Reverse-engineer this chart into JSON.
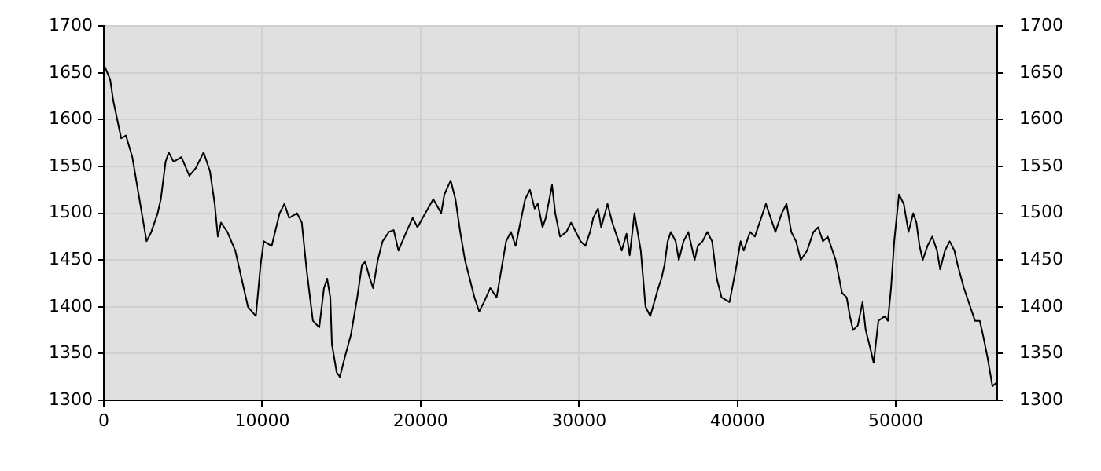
{
  "chart_data": {
    "type": "line",
    "xlim": [
      0,
      56400
    ],
    "xticks": [
      0,
      10000,
      20000,
      30000,
      40000,
      50000
    ],
    "ylim": [
      1300,
      1700
    ],
    "yticks": [
      1300,
      1350,
      1400,
      1450,
      1500,
      1550,
      1600,
      1650,
      1700
    ],
    "y2lim": [
      1300,
      1700
    ],
    "y2ticks": [
      1300,
      1350,
      1400,
      1450,
      1500,
      1550,
      1600,
      1650,
      1700
    ],
    "grid": true,
    "legend": false,
    "marker": "none",
    "line_style": "solid",
    "x": [
      0,
      400,
      600,
      1100,
      1400,
      1800,
      2100,
      2400,
      2700,
      3000,
      3400,
      3600,
      3900,
      4100,
      4400,
      4900,
      5400,
      5800,
      6300,
      6700,
      7000,
      7200,
      7400,
      7800,
      8300,
      8700,
      9100,
      9600,
      9900,
      10100,
      10600,
      11100,
      11400,
      11700,
      12200,
      12500,
      12800,
      13200,
      13600,
      13900,
      14100,
      14300,
      14400,
      14700,
      14900,
      15200,
      15600,
      16000,
      16300,
      16500,
      16800,
      17000,
      17300,
      17600,
      18000,
      18300,
      18600,
      19100,
      19500,
      19800,
      20300,
      20800,
      21300,
      21500,
      21900,
      22200,
      22500,
      22800,
      23100,
      23400,
      23700,
      24000,
      24400,
      24800,
      25100,
      25400,
      25700,
      26000,
      26300,
      26600,
      26900,
      27200,
      27400,
      27700,
      27900,
      28300,
      28500,
      28800,
      29200,
      29500,
      29800,
      30100,
      30400,
      30700,
      30900,
      31200,
      31400,
      31800,
      32100,
      32400,
      32700,
      33000,
      33200,
      33500,
      33900,
      34200,
      34500,
      35000,
      35200,
      35400,
      35600,
      35800,
      36100,
      36300,
      36600,
      36900,
      37300,
      37500,
      37800,
      38100,
      38400,
      38700,
      39000,
      39500,
      39900,
      40200,
      40400,
      40800,
      41100,
      41500,
      41800,
      42100,
      42400,
      42800,
      43100,
      43400,
      43700,
      44000,
      44400,
      44800,
      45100,
      45400,
      45700,
      46000,
      46200,
      46600,
      46900,
      47100,
      47300,
      47600,
      47900,
      48100,
      48400,
      48600,
      48900,
      49300,
      49500,
      49700,
      49900,
      50200,
      50500,
      50800,
      51100,
      51300,
      51500,
      51700,
      52000,
      52300,
      52600,
      52800,
      53100,
      53400,
      53700,
      53900,
      54300,
      54700,
      55000,
      55300,
      55500,
      55800,
      56100,
      56300,
      56400
    ],
    "series": [
      {
        "color": "#000000",
        "values": [
          1659,
          1643,
          1620,
          1580,
          1583,
          1560,
          1530,
          1500,
          1470,
          1480,
          1500,
          1515,
          1555,
          1565,
          1555,
          1560,
          1540,
          1548,
          1565,
          1545,
          1510,
          1475,
          1490,
          1480,
          1460,
          1430,
          1400,
          1390,
          1445,
          1470,
          1465,
          1500,
          1510,
          1495,
          1500,
          1490,
          1440,
          1385,
          1378,
          1420,
          1430,
          1410,
          1360,
          1330,
          1325,
          1345,
          1370,
          1410,
          1445,
          1448,
          1430,
          1420,
          1450,
          1470,
          1480,
          1482,
          1460,
          1480,
          1495,
          1485,
          1500,
          1515,
          1500,
          1520,
          1535,
          1515,
          1480,
          1450,
          1430,
          1410,
          1395,
          1405,
          1420,
          1410,
          1440,
          1470,
          1480,
          1465,
          1490,
          1515,
          1525,
          1505,
          1510,
          1485,
          1495,
          1530,
          1500,
          1475,
          1480,
          1490,
          1480,
          1470,
          1465,
          1480,
          1495,
          1505,
          1485,
          1510,
          1490,
          1475,
          1460,
          1478,
          1455,
          1500,
          1460,
          1400,
          1390,
          1420,
          1430,
          1445,
          1470,
          1480,
          1470,
          1450,
          1470,
          1480,
          1450,
          1465,
          1470,
          1480,
          1470,
          1430,
          1410,
          1405,
          1440,
          1470,
          1460,
          1480,
          1475,
          1495,
          1510,
          1495,
          1480,
          1500,
          1510,
          1480,
          1470,
          1450,
          1460,
          1480,
          1485,
          1470,
          1475,
          1460,
          1450,
          1415,
          1410,
          1390,
          1375,
          1380,
          1405,
          1375,
          1355,
          1340,
          1385,
          1390,
          1385,
          1420,
          1470,
          1520,
          1510,
          1480,
          1500,
          1490,
          1465,
          1450,
          1465,
          1475,
          1460,
          1440,
          1460,
          1470,
          1460,
          1445,
          1420,
          1400,
          1385,
          1385,
          1370,
          1345,
          1315,
          1318,
          1320
        ]
      }
    ]
  }
}
